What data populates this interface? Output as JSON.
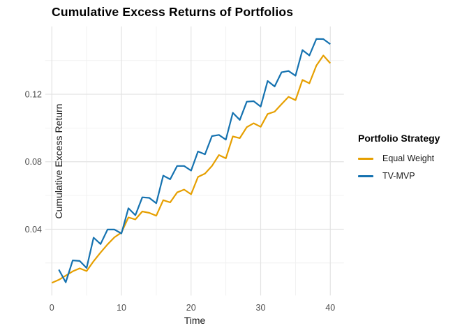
{
  "chart_data": {
    "type": "line",
    "title": "Cumulative Excess Returns of Portfolios",
    "xlabel": "Time",
    "ylabel": "Cumulative Excess Return",
    "legend_title": "Portfolio Strategy",
    "legend_position": "right",
    "grid": true,
    "background": "#ffffff",
    "grid_major_color": "#e3e3e3",
    "grid_minor_color": "#f0f0f0",
    "tick_text_color": "#4d4d4d",
    "xlim": [
      -0.95,
      41.95
    ],
    "ylim": [
      0.0007,
      0.1602
    ],
    "x_ticks": [
      0,
      10,
      20,
      30,
      40
    ],
    "x_tick_labels": [
      "0",
      "10",
      "20",
      "30",
      "40"
    ],
    "x_minor_ticks": [
      5,
      15,
      25,
      35
    ],
    "y_ticks": [
      0.04,
      0.08,
      0.12
    ],
    "y_tick_labels": [
      "0.04",
      "0.08",
      "0.12"
    ],
    "y_minor_ticks": [
      0.02,
      0.06,
      0.1,
      0.14
    ],
    "series": [
      {
        "name": "Equal Weight",
        "color": "#E69F00",
        "x": [
          0,
          1,
          2,
          3,
          4,
          5,
          6,
          7,
          8,
          9,
          10,
          11,
          12,
          13,
          14,
          15,
          16,
          17,
          18,
          19,
          20,
          21,
          22,
          23,
          24,
          25,
          26,
          27,
          28,
          29,
          30,
          31,
          32,
          33,
          34,
          35,
          36,
          37,
          38,
          39,
          40
        ],
        "y": [
          0.0082,
          0.01,
          0.0125,
          0.015,
          0.0168,
          0.0152,
          0.021,
          0.0262,
          0.031,
          0.0352,
          0.038,
          0.047,
          0.0458,
          0.0505,
          0.0497,
          0.048,
          0.0572,
          0.0559,
          0.0618,
          0.0635,
          0.0607,
          0.071,
          0.073,
          0.0775,
          0.084,
          0.082,
          0.095,
          0.094,
          0.1005,
          0.1028,
          0.1007,
          0.1083,
          0.1097,
          0.1141,
          0.1185,
          0.1165,
          0.1285,
          0.1265,
          0.137,
          0.143,
          0.1384
        ]
      },
      {
        "name": "TV-MVP",
        "color": "#1572B0",
        "x": [
          1,
          2,
          3,
          4,
          5,
          6,
          7,
          8,
          9,
          10,
          11,
          12,
          13,
          14,
          15,
          16,
          17,
          18,
          19,
          20,
          21,
          22,
          23,
          24,
          25,
          26,
          27,
          28,
          29,
          30,
          31,
          32,
          33,
          34,
          35,
          36,
          37,
          38,
          39,
          40
        ],
        "y": [
          0.016,
          0.0085,
          0.0215,
          0.0212,
          0.017,
          0.035,
          0.0312,
          0.0398,
          0.0398,
          0.0375,
          0.0524,
          0.0483,
          0.0589,
          0.0586,
          0.0554,
          0.0718,
          0.0696,
          0.0775,
          0.0775,
          0.0747,
          0.0861,
          0.0844,
          0.0952,
          0.0959,
          0.0931,
          0.109,
          0.1048,
          0.1156,
          0.1159,
          0.1127,
          0.1279,
          0.1246,
          0.133,
          0.1338,
          0.131,
          0.1462,
          0.143,
          0.1528,
          0.1527,
          0.1497
        ]
      }
    ]
  }
}
